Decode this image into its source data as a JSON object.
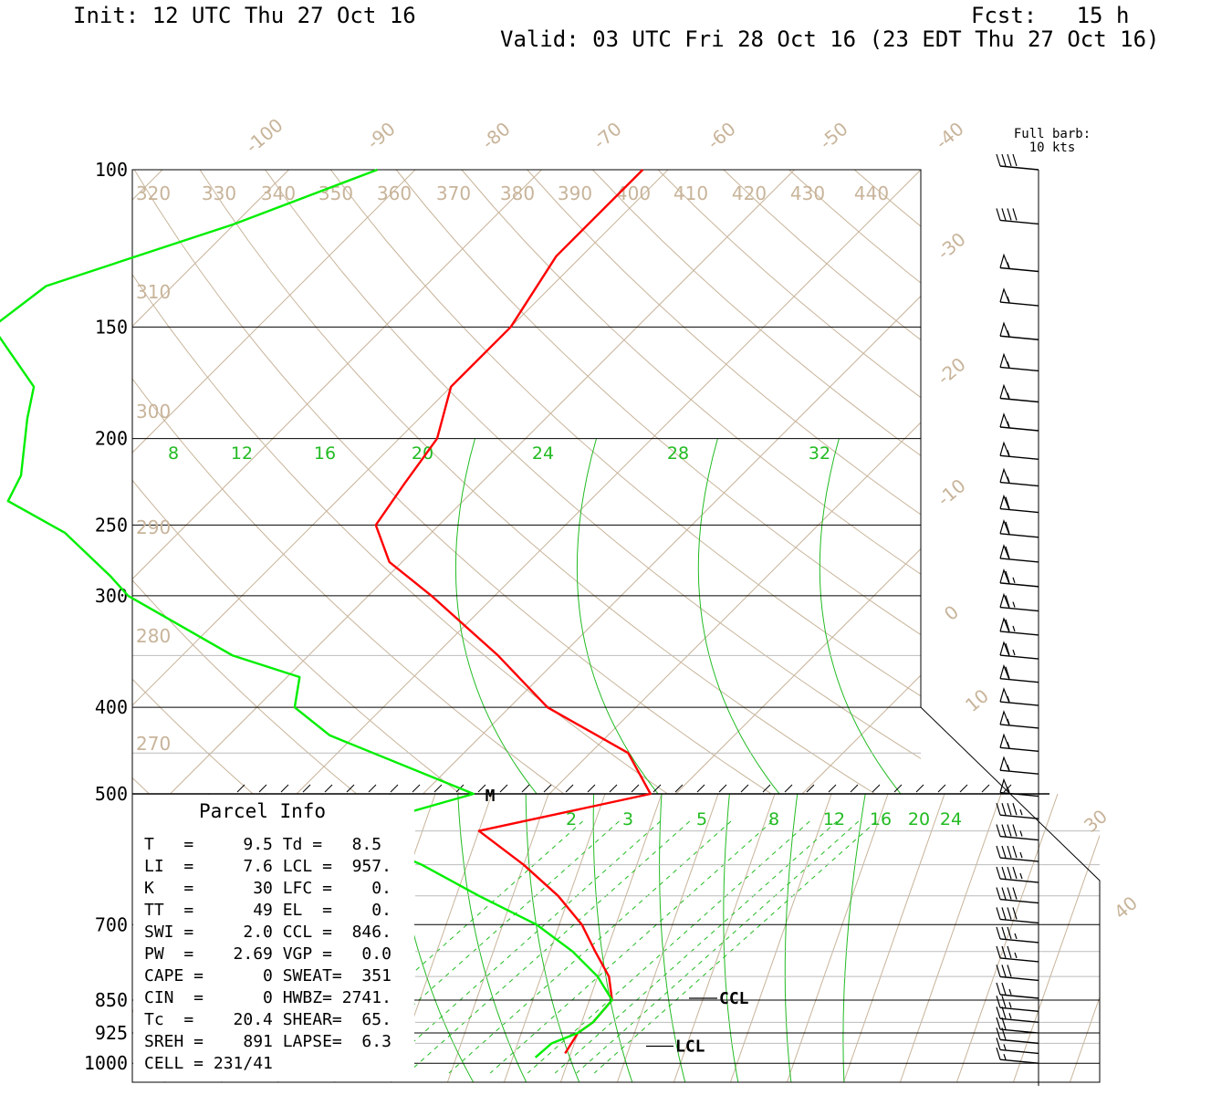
{
  "header": {
    "init": "Init: 12 UTC Thu 27 Oct 16",
    "fcst": "Fcst:   15 h",
    "valid": "Valid: 03 UTC Fri 28 Oct 16 (23 EDT Thu 27 Oct 16)"
  },
  "barb_legend": {
    "line1": "Full barb:",
    "line2": "10 kts"
  },
  "parcel_info": {
    "title": "Parcel Info",
    "rows": [
      "T   =     9.5 Td =   8.5",
      "LI  =     7.6 LCL =  957.",
      "K   =      30 LFC =    0.",
      "TT  =      49 EL  =    0.",
      "SWI =     2.0 CCL =  846.",
      "PW  =    2.69 VGP =   0.0",
      "CAPE =      0 SWEAT=  351",
      "CIN  =      0 HWBZ= 2741.",
      "Tc  =    20.4 SHEAR=  65.",
      "SREH =    891 LAPSE=  6.3",
      "CELL = 231/41"
    ]
  },
  "colors": {
    "temperature": "#ff0000",
    "dewpoint": "#00ee00",
    "isotherm_theta": "#c8b49a",
    "mixing_ratio": "#22bb22"
  },
  "chart_data": {
    "type": "line",
    "title": "",
    "y_axis": "pressure (hPa), log scale",
    "pressure_labels": [
      100,
      150,
      200,
      250,
      300,
      400,
      500,
      700,
      850,
      925,
      1000
    ],
    "upper_isotherm_labels": [
      "-100",
      "-90",
      "-80",
      "-70",
      "-60",
      "-50",
      "-40",
      "-30",
      "-20",
      "-10",
      "0",
      "10"
    ],
    "lower_isotherm_labels": [
      "30",
      "40"
    ],
    "theta_labels_top": [
      "320",
      "330",
      "340",
      "350",
      "360",
      "370",
      "380",
      "390",
      "400",
      "410",
      "420",
      "430",
      "440"
    ],
    "theta_labels_left": [
      "310",
      "300",
      "290",
      "280",
      "270"
    ],
    "upper_mixing_ratio_labels": [
      "8",
      "12",
      "16",
      "20",
      "24",
      "28",
      "32"
    ],
    "lower_mixing_ratio_labels": [
      "2",
      "3",
      "5",
      "8",
      "12",
      "16",
      "20",
      "24"
    ],
    "tropopause_marker": "M",
    "level_markers": [
      {
        "label": "CCL",
        "pressure": 846
      },
      {
        "label": "LCL",
        "pressure": 957
      }
    ],
    "series": [
      {
        "name": "Temperature",
        "points": [
          [
            100,
            -62
          ],
          [
            125,
            -62
          ],
          [
            150,
            -60
          ],
          [
            175,
            -60
          ],
          [
            200,
            -57
          ],
          [
            225,
            -56
          ],
          [
            250,
            -55
          ],
          [
            275,
            -51
          ],
          [
            300,
            -45
          ],
          [
            350,
            -35
          ],
          [
            400,
            -27
          ],
          [
            450,
            -17
          ],
          [
            500,
            -12
          ],
          [
            550,
            -5
          ],
          [
            600,
            0
          ],
          [
            650,
            4
          ],
          [
            700,
            7
          ],
          [
            750,
            9
          ],
          [
            800,
            11
          ],
          [
            850,
            12
          ],
          [
            900,
            11
          ],
          [
            925,
            10
          ],
          [
            975,
            9.5
          ]
        ]
      },
      {
        "name": "Dewpoint",
        "points": [
          [
            100,
            -83
          ],
          [
            115,
            -90
          ],
          [
            135,
            -100
          ],
          [
            150,
            -101
          ],
          [
            175,
            -93
          ],
          [
            190,
            -91
          ],
          [
            220,
            -87
          ],
          [
            235,
            -86
          ],
          [
            255,
            -79
          ],
          [
            285,
            -72
          ],
          [
            300,
            -69
          ],
          [
            350,
            -56
          ],
          [
            370,
            -49
          ],
          [
            400,
            -47
          ],
          [
            430,
            -42
          ],
          [
            500,
            -26
          ],
          [
            550,
            -17
          ],
          [
            600,
            -9
          ],
          [
            650,
            -3
          ],
          [
            700,
            3
          ],
          [
            750,
            7
          ],
          [
            800,
            10
          ],
          [
            850,
            12
          ],
          [
            900,
            11
          ],
          [
            925,
            10
          ],
          [
            950,
            8
          ],
          [
            985,
            7
          ]
        ]
      }
    ],
    "wind_barbs_knots": [
      {
        "pressure": 100,
        "speed": 40
      },
      {
        "pressure": 115,
        "speed": 40
      },
      {
        "pressure": 130,
        "speed": 55
      },
      {
        "pressure": 142,
        "speed": 55
      },
      {
        "pressure": 155,
        "speed": 55
      },
      {
        "pressure": 168,
        "speed": 55
      },
      {
        "pressure": 182,
        "speed": 55
      },
      {
        "pressure": 196,
        "speed": 55
      },
      {
        "pressure": 211,
        "speed": 55
      },
      {
        "pressure": 226,
        "speed": 55
      },
      {
        "pressure": 242,
        "speed": 60
      },
      {
        "pressure": 258,
        "speed": 60
      },
      {
        "pressure": 275,
        "speed": 60
      },
      {
        "pressure": 293,
        "speed": 65
      },
      {
        "pressure": 312,
        "speed": 65
      },
      {
        "pressure": 332,
        "speed": 65
      },
      {
        "pressure": 353,
        "speed": 65
      },
      {
        "pressure": 375,
        "speed": 60
      },
      {
        "pressure": 398,
        "speed": 55
      },
      {
        "pressure": 422,
        "speed": 55
      },
      {
        "pressure": 448,
        "speed": 55
      },
      {
        "pressure": 475,
        "speed": 55
      },
      {
        "pressure": 503,
        "speed": 55
      },
      {
        "pressure": 533,
        "speed": 45
      },
      {
        "pressure": 563,
        "speed": 45
      },
      {
        "pressure": 595,
        "speed": 45
      },
      {
        "pressure": 628,
        "speed": 45
      },
      {
        "pressure": 662,
        "speed": 40
      },
      {
        "pressure": 697,
        "speed": 40
      },
      {
        "pressure": 733,
        "speed": 35
      },
      {
        "pressure": 770,
        "speed": 35
      },
      {
        "pressure": 808,
        "speed": 30
      },
      {
        "pressure": 846,
        "speed": 25
      },
      {
        "pressure": 875,
        "speed": 25
      },
      {
        "pressure": 900,
        "speed": 25
      },
      {
        "pressure": 925,
        "speed": 20
      },
      {
        "pressure": 950,
        "speed": 20
      },
      {
        "pressure": 975,
        "speed": 15
      },
      {
        "pressure": 1000,
        "speed": 15
      }
    ]
  }
}
